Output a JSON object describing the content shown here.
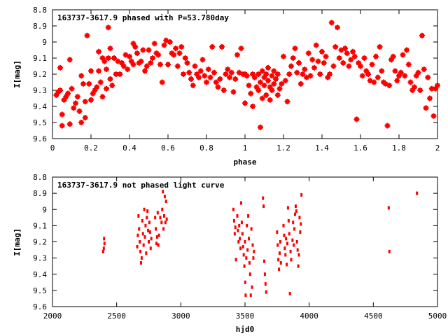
{
  "chart_data": [
    {
      "type": "scatter",
      "title": "163737-3617.9 phased with P=53.780day",
      "xlabel": "phase",
      "ylabel": "I[mag]",
      "xlim": [
        0,
        2
      ],
      "ylim": [
        9.6,
        8.8
      ],
      "y_inverted": true,
      "grid": false,
      "marker": "star",
      "color": "#ff0000",
      "x_ticks": [
        "0",
        "0.2",
        "0.4",
        "0.6",
        "0.8",
        "1",
        "1.2",
        "1.4",
        "1.6",
        "1.8",
        "2"
      ],
      "y_ticks": [
        "8.8",
        "8.9",
        "9",
        "9.1",
        "9.2",
        "9.3",
        "9.4",
        "9.5",
        "9.6"
      ],
      "points": [
        [
          0.02,
          9.33
        ],
        [
          0.03,
          9.31
        ],
        [
          0.04,
          9.16
        ],
        [
          0.04,
          9.3
        ],
        [
          0.05,
          9.45
        ],
        [
          0.05,
          9.52
        ],
        [
          0.06,
          9.36
        ],
        [
          0.07,
          9.34
        ],
        [
          0.08,
          9.32
        ],
        [
          0.09,
          9.11
        ],
        [
          0.09,
          9.51
        ],
        [
          0.1,
          9.29
        ],
        [
          0.11,
          9.41
        ],
        [
          0.12,
          9.38
        ],
        [
          0.13,
          9.34
        ],
        [
          0.14,
          9.43
        ],
        [
          0.15,
          9.21
        ],
        [
          0.15,
          9.5
        ],
        [
          0.16,
          9.26
        ],
        [
          0.17,
          9.37
        ],
        [
          0.17,
          9.47
        ],
        [
          0.18,
          8.96
        ],
        [
          0.19,
          9.26
        ],
        [
          0.2,
          9.18
        ],
        [
          0.2,
          9.36
        ],
        [
          0.21,
          9.32
        ],
        [
          0.22,
          9.3
        ],
        [
          0.23,
          9.28
        ],
        [
          0.24,
          9.18
        ],
        [
          0.24,
          9.06
        ],
        [
          0.25,
          9.25
        ],
        [
          0.26,
          9.1
        ],
        [
          0.26,
          9.34
        ],
        [
          0.27,
          9.12
        ],
        [
          0.28,
          9.17
        ],
        [
          0.28,
          9.29
        ],
        [
          0.29,
          9.1
        ],
        [
          0.29,
          8.91
        ],
        [
          0.3,
          9.23
        ],
        [
          0.3,
          9.04
        ],
        [
          0.31,
          9.27
        ],
        [
          0.32,
          9.1
        ],
        [
          0.33,
          9.2
        ],
        [
          0.34,
          9.12
        ],
        [
          0.35,
          9.2
        ],
        [
          0.36,
          9.13
        ],
        [
          0.37,
          9.15
        ],
        [
          0.38,
          9.08
        ],
        [
          0.39,
          9.17
        ],
        [
          0.4,
          9.09
        ],
        [
          0.41,
          9.12
        ],
        [
          0.42,
          9.01
        ],
        [
          0.42,
          9.14
        ],
        [
          0.43,
          9.03
        ],
        [
          0.44,
          9.07
        ],
        [
          0.45,
          9.13
        ],
        [
          0.46,
          9.12
        ],
        [
          0.47,
          9.05
        ],
        [
          0.48,
          9.18
        ],
        [
          0.49,
          9.15
        ],
        [
          0.5,
          9.05
        ],
        [
          0.51,
          9.13
        ],
        [
          0.52,
          9.1
        ],
        [
          0.53,
          9.01
        ],
        [
          0.54,
          9.07
        ],
        [
          0.55,
          9.08
        ],
        [
          0.56,
          9.14
        ],
        [
          0.57,
          9.25
        ],
        [
          0.58,
          9.02
        ],
        [
          0.59,
          8.99
        ],
        [
          0.6,
          9.14
        ],
        [
          0.61,
          9.0
        ],
        [
          0.62,
          9.07
        ],
        [
          0.63,
          9.08
        ],
        [
          0.64,
          9.04
        ],
        [
          0.65,
          9.15
        ],
        [
          0.66,
          9.07
        ],
        [
          0.67,
          9.03
        ],
        [
          0.68,
          9.2
        ],
        [
          0.69,
          9.1
        ],
        [
          0.7,
          9.13
        ],
        [
          0.71,
          9.19
        ],
        [
          0.72,
          9.23
        ],
        [
          0.73,
          9.27
        ],
        [
          0.74,
          9.15
        ],
        [
          0.75,
          9.2
        ],
        [
          0.76,
          9.22
        ],
        [
          0.77,
          9.18
        ],
        [
          0.78,
          9.11
        ],
        [
          0.79,
          9.21
        ],
        [
          0.8,
          9.25
        ],
        [
          0.81,
          9.17
        ],
        [
          0.82,
          9.22
        ],
        [
          0.83,
          9.03
        ],
        [
          0.84,
          9.19
        ],
        [
          0.85,
          9.25
        ],
        [
          0.86,
          9.28
        ],
        [
          0.87,
          9.23
        ],
        [
          0.88,
          9.03
        ],
        [
          0.89,
          9.3
        ],
        [
          0.9,
          9.2
        ],
        [
          0.91,
          9.17
        ],
        [
          0.92,
          9.22
        ],
        [
          0.93,
          9.19
        ],
        [
          0.94,
          9.31
        ],
        [
          0.95,
          9.23
        ],
        [
          0.96,
          9.08
        ],
        [
          0.97,
          9.19
        ],
        [
          0.98,
          9.04
        ],
        [
          0.99,
          9.2
        ],
        [
          1.0,
          9.2
        ],
        [
          1.0,
          9.38
        ],
        [
          1.01,
          9.21
        ],
        [
          1.02,
          9.27
        ],
        [
          1.03,
          9.32
        ],
        [
          1.04,
          9.2
        ],
        [
          1.04,
          9.4
        ],
        [
          1.05,
          9.22
        ],
        [
          1.06,
          9.28
        ],
        [
          1.07,
          9.2
        ],
        [
          1.07,
          9.3
        ],
        [
          1.08,
          9.25
        ],
        [
          1.08,
          9.53
        ],
        [
          1.09,
          9.18
        ],
        [
          1.09,
          9.35
        ],
        [
          1.1,
          9.22
        ],
        [
          1.1,
          9.27
        ],
        [
          1.11,
          9.2
        ],
        [
          1.11,
          9.33
        ],
        [
          1.12,
          9.24
        ],
        [
          1.12,
          9.16
        ],
        [
          1.13,
          9.28
        ],
        [
          1.13,
          9.36
        ],
        [
          1.14,
          9.21
        ],
        [
          1.14,
          9.3
        ],
        [
          1.15,
          9.26
        ],
        [
          1.15,
          9.18
        ],
        [
          1.16,
          9.23
        ],
        [
          1.17,
          9.2
        ],
        [
          1.17,
          9.33
        ],
        [
          1.18,
          9.29
        ],
        [
          1.19,
          9.26
        ],
        [
          1.2,
          9.09
        ],
        [
          1.21,
          9.24
        ],
        [
          1.22,
          9.37
        ],
        [
          1.23,
          9.2
        ],
        [
          1.24,
          9.15
        ],
        [
          1.25,
          9.1
        ],
        [
          1.26,
          9.04
        ],
        [
          1.27,
          9.19
        ],
        [
          1.28,
          9.13
        ],
        [
          1.29,
          9.26
        ],
        [
          1.3,
          9.2
        ],
        [
          1.31,
          9.17
        ],
        [
          1.32,
          9.22
        ],
        [
          1.33,
          9.07
        ],
        [
          1.34,
          9.21
        ],
        [
          1.35,
          9.11
        ],
        [
          1.36,
          9.16
        ],
        [
          1.37,
          9.02
        ],
        [
          1.38,
          9.12
        ],
        [
          1.39,
          9.2
        ],
        [
          1.4,
          9.06
        ],
        [
          1.41,
          9.13
        ],
        [
          1.42,
          9.09
        ],
        [
          1.43,
          9.22
        ],
        [
          1.44,
          9.2
        ],
        [
          1.45,
          8.88
        ],
        [
          1.46,
          9.15
        ],
        [
          1.47,
          9.03
        ],
        [
          1.48,
          8.91
        ],
        [
          1.49,
          9.1
        ],
        [
          1.5,
          9.05
        ],
        [
          1.51,
          9.13
        ],
        [
          1.52,
          9.04
        ],
        [
          1.53,
          9.07
        ],
        [
          1.54,
          9.15
        ],
        [
          1.55,
          9.11
        ],
        [
          1.56,
          9.06
        ],
        [
          1.57,
          9.09
        ],
        [
          1.58,
          9.48
        ],
        [
          1.59,
          9.13
        ],
        [
          1.6,
          9.15
        ],
        [
          1.61,
          9.21
        ],
        [
          1.62,
          9.1
        ],
        [
          1.63,
          9.18
        ],
        [
          1.64,
          9.2
        ],
        [
          1.65,
          9.24
        ],
        [
          1.66,
          9.14
        ],
        [
          1.67,
          9.25
        ],
        [
          1.68,
          9.09
        ],
        [
          1.69,
          9.22
        ],
        [
          1.7,
          9.03
        ],
        [
          1.71,
          9.18
        ],
        [
          1.72,
          9.25
        ],
        [
          1.73,
          9.26
        ],
        [
          1.74,
          9.52
        ],
        [
          1.75,
          9.27
        ],
        [
          1.76,
          9.11
        ],
        [
          1.77,
          9.09
        ],
        [
          1.78,
          9.18
        ],
        [
          1.79,
          9.24
        ],
        [
          1.8,
          9.21
        ],
        [
          1.81,
          9.19
        ],
        [
          1.82,
          9.08
        ],
        [
          1.83,
          9.21
        ],
        [
          1.84,
          9.05
        ],
        [
          1.85,
          9.14
        ],
        [
          1.86,
          9.25
        ],
        [
          1.87,
          9.3
        ],
        [
          1.88,
          9.28
        ],
        [
          1.89,
          9.21
        ],
        [
          1.9,
          9.19
        ],
        [
          1.91,
          9.3
        ],
        [
          1.92,
          8.96
        ],
        [
          1.93,
          9.17
        ],
        [
          1.94,
          9.41
        ],
        [
          1.95,
          9.22
        ],
        [
          1.96,
          9.35
        ],
        [
          1.97,
          9.29
        ],
        [
          1.98,
          9.46
        ],
        [
          1.99,
          9.29
        ],
        [
          2.0,
          9.27
        ]
      ]
    },
    {
      "type": "scatter",
      "title": "163737-3617.9 not phased light curve",
      "xlabel": "hjd0",
      "ylabel": "I[mag]",
      "xlim": [
        2000,
        5000
      ],
      "ylim": [
        9.6,
        8.8
      ],
      "y_inverted": true,
      "grid": false,
      "marker": "dot",
      "color": "#ff0000",
      "x_ticks": [
        "2000",
        "2500",
        "3000",
        "3500",
        "4000",
        "4500",
        "5000"
      ],
      "y_ticks": [
        "8.8",
        "8.9",
        "9",
        "9.1",
        "9.2",
        "9.3",
        "9.4",
        "9.5",
        "9.6"
      ],
      "points": [
        [
          2395,
          9.26
        ],
        [
          2400,
          9.24
        ],
        [
          2402,
          9.18
        ],
        [
          2405,
          9.21
        ],
        [
          2660,
          9.23
        ],
        [
          2665,
          9.16
        ],
        [
          2670,
          9.04
        ],
        [
          2675,
          9.12
        ],
        [
          2680,
          9.2
        ],
        [
          2685,
          9.26
        ],
        [
          2690,
          9.33
        ],
        [
          2695,
          9.3
        ],
        [
          2700,
          9.07
        ],
        [
          2705,
          9.15
        ],
        [
          2710,
          9.22
        ],
        [
          2715,
          9.0
        ],
        [
          2720,
          9.17
        ],
        [
          2725,
          9.1
        ],
        [
          2730,
          9.27
        ],
        [
          2735,
          9.05
        ],
        [
          2740,
          9.01
        ],
        [
          2745,
          9.13
        ],
        [
          2750,
          9.2
        ],
        [
          2755,
          9.08
        ],
        [
          2760,
          9.14
        ],
        [
          2765,
          9.24
        ],
        [
          2770,
          9.18
        ],
        [
          2800,
          9.05
        ],
        [
          2805,
          9.12
        ],
        [
          2810,
          9.21
        ],
        [
          2815,
          9.17
        ],
        [
          2820,
          9.02
        ],
        [
          2825,
          9.22
        ],
        [
          2830,
          9.16
        ],
        [
          2840,
          9.05
        ],
        [
          2850,
          9.08
        ],
        [
          2855,
          9.0
        ],
        [
          2860,
          8.89
        ],
        [
          2865,
          9.12
        ],
        [
          2870,
          9.04
        ],
        [
          2875,
          8.92
        ],
        [
          2880,
          9.08
        ],
        [
          2885,
          8.95
        ],
        [
          2890,
          9.06
        ],
        [
          3410,
          9.0
        ],
        [
          3415,
          9.07
        ],
        [
          3420,
          9.15
        ],
        [
          3425,
          9.11
        ],
        [
          3430,
          9.31
        ],
        [
          3440,
          9.04
        ],
        [
          3445,
          9.13
        ],
        [
          3450,
          9.2
        ],
        [
          3455,
          9.1
        ],
        [
          3460,
          9.18
        ],
        [
          3465,
          9.24
        ],
        [
          3470,
          8.96
        ],
        [
          3475,
          9.08
        ],
        [
          3480,
          9.15
        ],
        [
          3485,
          9.23
        ],
        [
          3490,
          9.28
        ],
        [
          3495,
          9.35
        ],
        [
          3500,
          9.2
        ],
        [
          3502,
          9.45
        ],
        [
          3505,
          9.53
        ],
        [
          3510,
          9.3
        ],
        [
          3515,
          9.1
        ],
        [
          3520,
          9.25
        ],
        [
          3525,
          9.04
        ],
        [
          3530,
          9.18
        ],
        [
          3535,
          9.33
        ],
        [
          3540,
          9.4
        ],
        [
          3545,
          9.53
        ],
        [
          3550,
          9.12
        ],
        [
          3555,
          9.48
        ],
        [
          3560,
          9.22
        ],
        [
          3565,
          9.3
        ],
        [
          3570,
          9.26
        ],
        [
          3640,
          8.93
        ],
        [
          3645,
          8.98
        ],
        [
          3650,
          9.32
        ],
        [
          3655,
          9.4
        ],
        [
          3660,
          9.46
        ],
        [
          3665,
          9.51
        ],
        [
          3750,
          9.14
        ],
        [
          3755,
          9.22
        ],
        [
          3760,
          9.31
        ],
        [
          3765,
          9.37
        ],
        [
          3770,
          9.27
        ],
        [
          3775,
          9.2
        ],
        [
          3780,
          9.33
        ],
        [
          3800,
          9.1
        ],
        [
          3805,
          9.16
        ],
        [
          3810,
          9.24
        ],
        [
          3815,
          9.28
        ],
        [
          3820,
          9.18
        ],
        [
          3825,
          9.34
        ],
        [
          3830,
          9.21
        ],
        [
          3835,
          8.99
        ],
        [
          3840,
          9.07
        ],
        [
          3845,
          9.15
        ],
        [
          3850,
          9.52
        ],
        [
          3855,
          9.26
        ],
        [
          3860,
          9.31
        ],
        [
          3870,
          9.19
        ],
        [
          3875,
          9.08
        ],
        [
          3880,
          9.22
        ],
        [
          3885,
          9.12
        ],
        [
          3890,
          9.03
        ],
        [
          3895,
          8.98
        ],
        [
          3900,
          9.01
        ],
        [
          3905,
          9.2
        ],
        [
          3910,
          9.25
        ],
        [
          3915,
          9.35
        ],
        [
          3920,
          9.28
        ],
        [
          3925,
          9.05
        ],
        [
          3930,
          9.14
        ],
        [
          3935,
          9.09
        ],
        [
          3940,
          8.91
        ],
        [
          4620,
          8.99
        ],
        [
          4625,
          9.26
        ],
        [
          4840,
          8.9
        ]
      ]
    }
  ]
}
